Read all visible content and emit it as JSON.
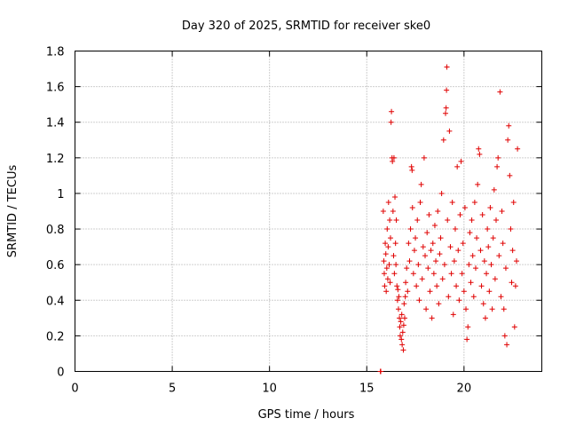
{
  "chart_data": {
    "type": "scatter",
    "title": "Day 320 of 2025, SRMTID for receiver ske0",
    "xlabel": "GPS time / hours",
    "ylabel": "SRMTID / TECUs",
    "xlim": [
      0,
      24
    ],
    "ylim": [
      0,
      1.8
    ],
    "xticks": [
      0,
      5,
      10,
      15,
      20
    ],
    "xtick_labels": [
      "0",
      "5",
      "10",
      "15",
      "20"
    ],
    "yticks": [
      0,
      0.2,
      0.4,
      0.6,
      0.8,
      1.0,
      1.2,
      1.4,
      1.6,
      1.8
    ],
    "ytick_labels": [
      "0",
      "0.2",
      "0.4",
      "0.6",
      "0.8",
      "1",
      "1.2",
      "1.4",
      "1.6",
      "1.8"
    ],
    "grid": true,
    "marker": "+",
    "series": [
      {
        "name": "SRMTID",
        "color": "#e00000",
        "points": [
          [
            15.7,
            0.0
          ],
          [
            15.72,
            0.0
          ],
          [
            15.85,
            0.9
          ],
          [
            15.88,
            0.62
          ],
          [
            15.9,
            0.55
          ],
          [
            15.92,
            0.48
          ],
          [
            15.95,
            0.72
          ],
          [
            15.98,
            0.66
          ],
          [
            16.0,
            0.45
          ],
          [
            16.03,
            0.58
          ],
          [
            16.05,
            0.8
          ],
          [
            16.08,
            0.52
          ],
          [
            16.1,
            0.7
          ],
          [
            16.12,
            0.95
          ],
          [
            16.15,
            0.6
          ],
          [
            16.18,
            0.85
          ],
          [
            16.2,
            0.5
          ],
          [
            16.22,
            0.75
          ],
          [
            16.25,
            1.4
          ],
          [
            16.27,
            1.46
          ],
          [
            16.3,
            1.2
          ],
          [
            16.32,
            1.18
          ],
          [
            16.35,
            0.9
          ],
          [
            16.38,
            0.65
          ],
          [
            16.4,
            1.2
          ],
          [
            16.42,
            0.55
          ],
          [
            16.45,
            0.98
          ],
          [
            16.48,
            0.72
          ],
          [
            16.5,
            0.6
          ],
          [
            16.52,
            0.85
          ],
          [
            16.55,
            0.48
          ],
          [
            16.58,
            0.4
          ],
          [
            16.6,
            0.46
          ],
          [
            16.63,
            0.35
          ],
          [
            16.65,
            0.42
          ],
          [
            16.68,
            0.3
          ],
          [
            16.7,
            0.25
          ],
          [
            16.72,
            0.2
          ],
          [
            16.75,
            0.28
          ],
          [
            16.78,
            0.18
          ],
          [
            16.8,
            0.32
          ],
          [
            16.82,
            0.15
          ],
          [
            16.85,
            0.22
          ],
          [
            16.88,
            0.12
          ],
          [
            16.9,
            0.26
          ],
          [
            16.92,
            0.38
          ],
          [
            16.95,
            0.3
          ],
          [
            16.98,
            0.42
          ],
          [
            17.0,
            0.5
          ],
          [
            17.05,
            0.58
          ],
          [
            17.1,
            0.45
          ],
          [
            17.15,
            0.72
          ],
          [
            17.2,
            0.62
          ],
          [
            17.25,
            0.8
          ],
          [
            17.3,
            1.15
          ],
          [
            17.33,
            1.13
          ],
          [
            17.35,
            0.92
          ],
          [
            17.4,
            0.55
          ],
          [
            17.45,
            0.68
          ],
          [
            17.5,
            0.75
          ],
          [
            17.55,
            0.48
          ],
          [
            17.6,
            0.85
          ],
          [
            17.65,
            0.6
          ],
          [
            17.7,
            0.4
          ],
          [
            17.75,
            0.95
          ],
          [
            17.8,
            1.05
          ],
          [
            17.85,
            0.52
          ],
          [
            17.9,
            0.7
          ],
          [
            17.95,
            1.2
          ],
          [
            18.0,
            0.65
          ],
          [
            18.05,
            0.35
          ],
          [
            18.1,
            0.78
          ],
          [
            18.15,
            0.58
          ],
          [
            18.2,
            0.88
          ],
          [
            18.25,
            0.45
          ],
          [
            18.3,
            0.68
          ],
          [
            18.35,
            0.3
          ],
          [
            18.4,
            0.72
          ],
          [
            18.45,
            0.55
          ],
          [
            18.5,
            0.82
          ],
          [
            18.55,
            0.62
          ],
          [
            18.6,
            0.48
          ],
          [
            18.65,
            0.9
          ],
          [
            18.7,
            0.38
          ],
          [
            18.75,
            0.66
          ],
          [
            18.8,
            0.75
          ],
          [
            18.85,
            1.0
          ],
          [
            18.9,
            0.52
          ],
          [
            18.95,
            1.3
          ],
          [
            19.0,
            0.6
          ],
          [
            19.05,
            1.45
          ],
          [
            19.08,
            1.48
          ],
          [
            19.1,
            1.58
          ],
          [
            19.12,
            1.71
          ],
          [
            19.15,
            0.85
          ],
          [
            19.2,
            0.42
          ],
          [
            19.25,
            1.35
          ],
          [
            19.3,
            0.7
          ],
          [
            19.35,
            0.55
          ],
          [
            19.4,
            0.95
          ],
          [
            19.45,
            0.32
          ],
          [
            19.5,
            0.62
          ],
          [
            19.55,
            0.8
          ],
          [
            19.6,
            0.48
          ],
          [
            19.65,
            1.15
          ],
          [
            19.7,
            0.68
          ],
          [
            19.75,
            0.4
          ],
          [
            19.8,
            0.88
          ],
          [
            19.85,
            1.18
          ],
          [
            19.9,
            0.55
          ],
          [
            19.95,
            0.72
          ],
          [
            20.0,
            0.45
          ],
          [
            20.05,
            0.92
          ],
          [
            20.1,
            0.35
          ],
          [
            20.15,
            0.18
          ],
          [
            20.2,
            0.25
          ],
          [
            20.25,
            0.6
          ],
          [
            20.3,
            0.78
          ],
          [
            20.35,
            0.5
          ],
          [
            20.4,
            0.85
          ],
          [
            20.45,
            0.65
          ],
          [
            20.5,
            0.42
          ],
          [
            20.55,
            0.95
          ],
          [
            20.6,
            0.58
          ],
          [
            20.65,
            0.75
          ],
          [
            20.7,
            1.05
          ],
          [
            20.75,
            1.25
          ],
          [
            20.8,
            1.22
          ],
          [
            20.85,
            0.68
          ],
          [
            20.9,
            0.48
          ],
          [
            20.95,
            0.88
          ],
          [
            21.0,
            0.38
          ],
          [
            21.05,
            0.62
          ],
          [
            21.1,
            0.3
          ],
          [
            21.15,
            0.55
          ],
          [
            21.2,
            0.8
          ],
          [
            21.25,
            0.7
          ],
          [
            21.3,
            0.45
          ],
          [
            21.35,
            0.92
          ],
          [
            21.4,
            0.6
          ],
          [
            21.45,
            0.35
          ],
          [
            21.5,
            0.75
          ],
          [
            21.55,
            1.02
          ],
          [
            21.6,
            0.52
          ],
          [
            21.65,
            0.85
          ],
          [
            21.7,
            1.15
          ],
          [
            21.75,
            1.2
          ],
          [
            21.8,
            0.65
          ],
          [
            21.85,
            1.57
          ],
          [
            21.9,
            0.42
          ],
          [
            21.95,
            0.9
          ],
          [
            22.0,
            0.72
          ],
          [
            22.05,
            0.35
          ],
          [
            22.1,
            0.2
          ],
          [
            22.15,
            0.58
          ],
          [
            22.2,
            0.15
          ],
          [
            22.25,
            1.3
          ],
          [
            22.3,
            1.38
          ],
          [
            22.35,
            1.1
          ],
          [
            22.4,
            0.8
          ],
          [
            22.45,
            0.5
          ],
          [
            22.5,
            0.68
          ],
          [
            22.55,
            0.95
          ],
          [
            22.6,
            0.25
          ],
          [
            22.65,
            0.48
          ],
          [
            22.7,
            0.62
          ],
          [
            22.75,
            1.25
          ]
        ]
      }
    ]
  }
}
